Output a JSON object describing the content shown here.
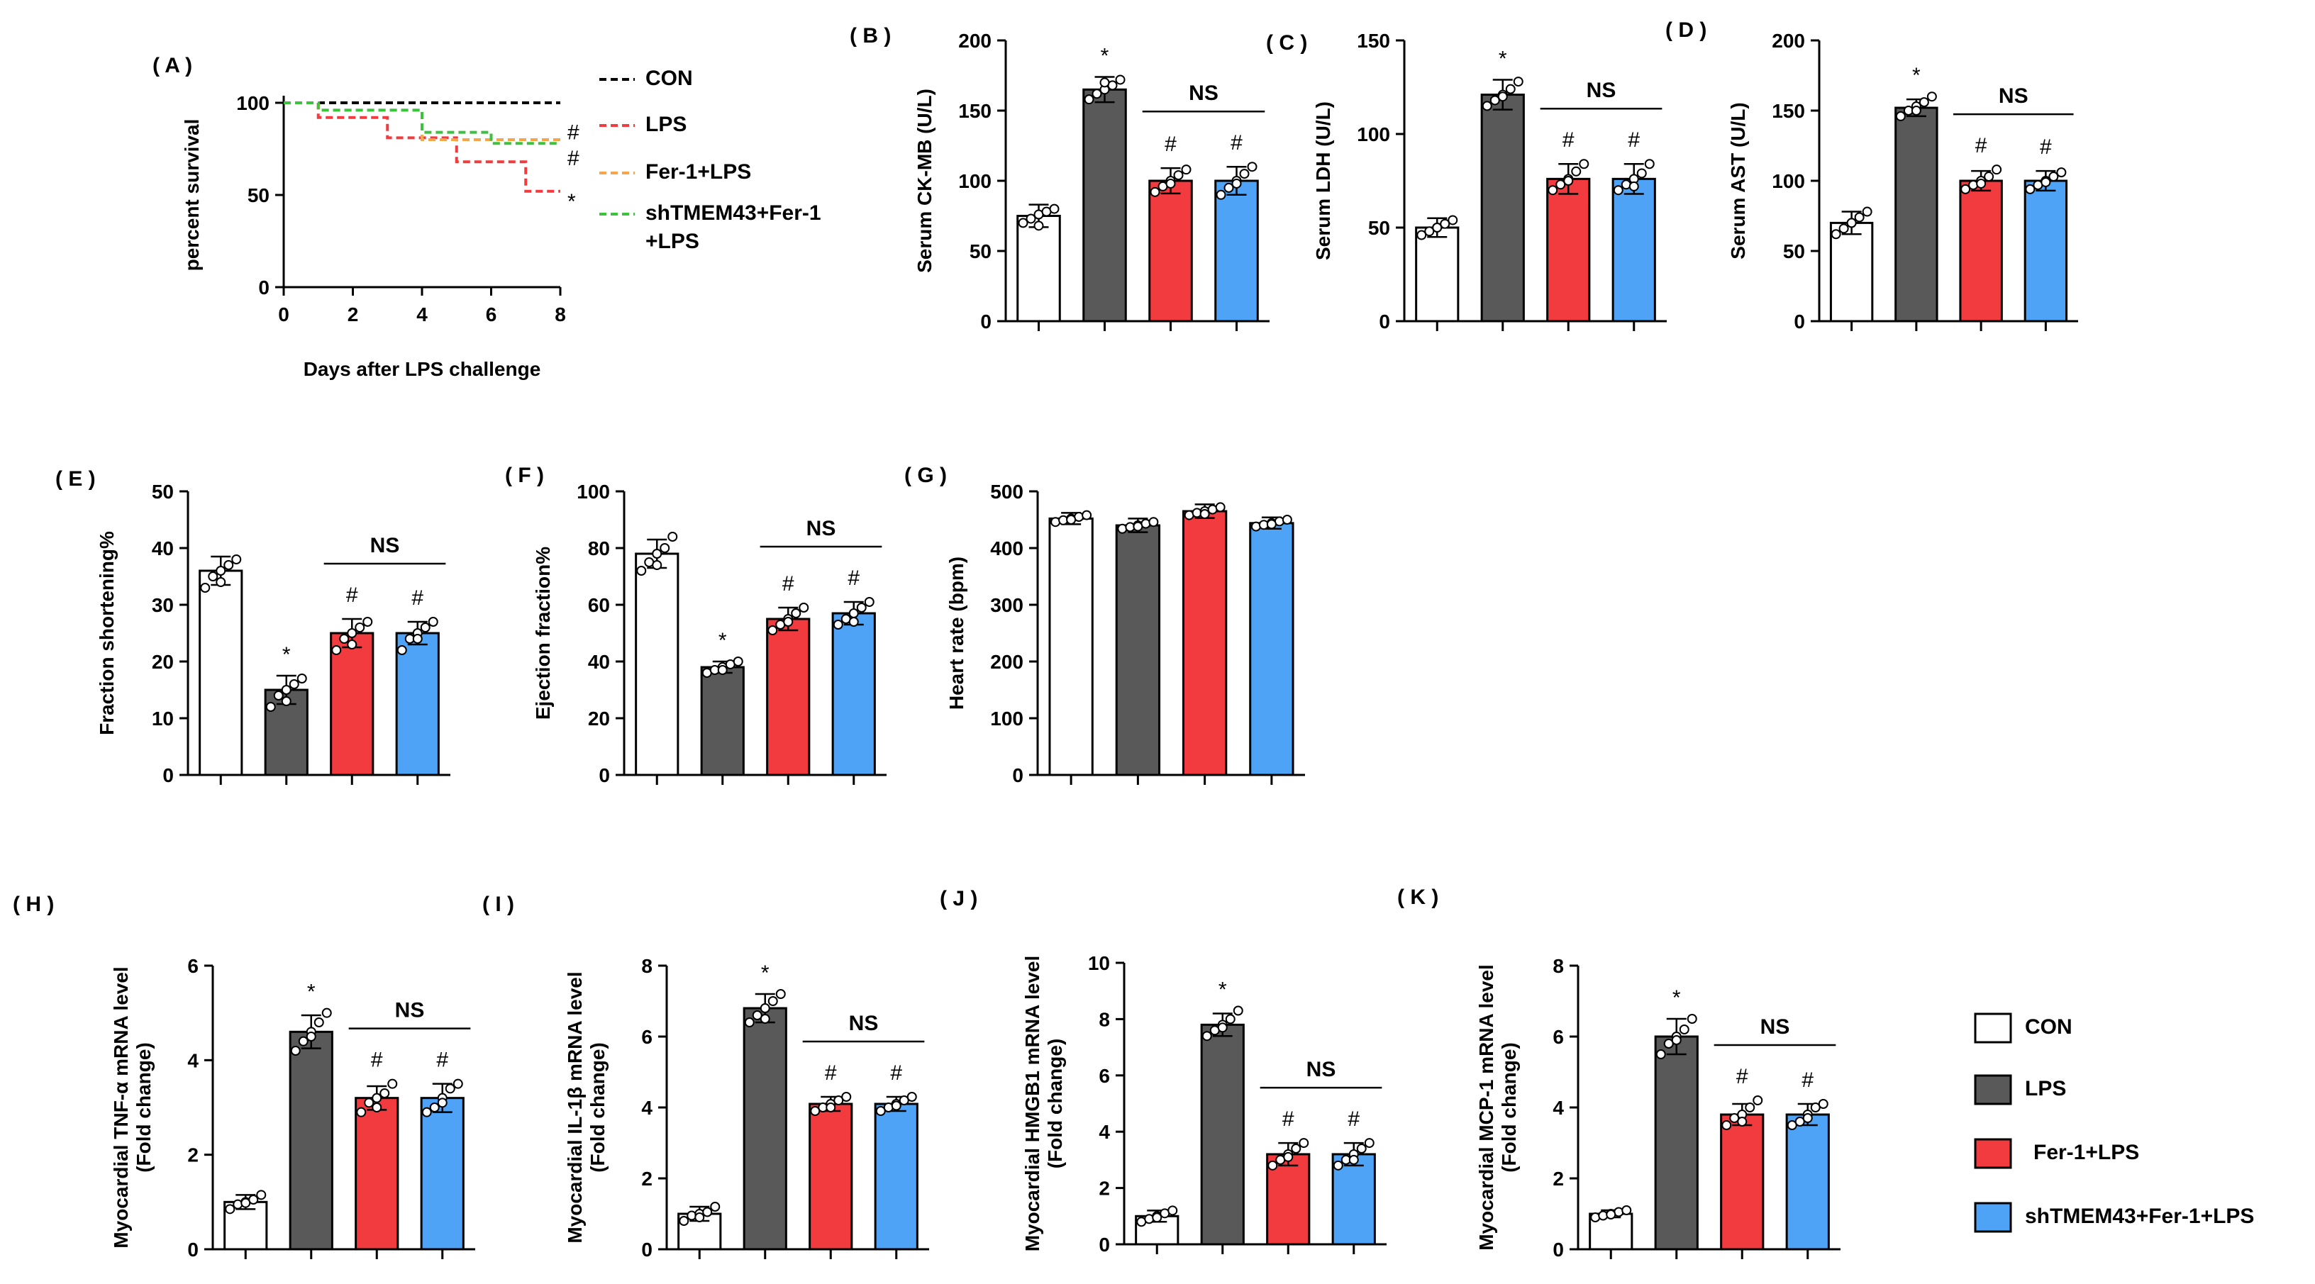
{
  "figure": {
    "colors": {
      "con": "#ffffff",
      "lps": "#595959",
      "fer1": "#f23b3f",
      "sh": "#4fa3f7",
      "edge": "#000000"
    },
    "groups": [
      "CON",
      "LPS",
      "Fer-1+LPS",
      "shTMEM43+Fer-1+LPS"
    ]
  },
  "legend": {
    "items": [
      {
        "label": "CON",
        "color": "#ffffff"
      },
      {
        "label": "LPS",
        "color": "#595959"
      },
      {
        "label": "Fer-1+LPS",
        "color": "#f23b3f"
      },
      {
        "label": "shTMEM43+Fer-1+LPS",
        "color": "#4fa3f7"
      }
    ]
  },
  "chart_data": [
    {
      "id": "A",
      "panel_label": "( A )",
      "type": "line",
      "title": "",
      "xlabel": "Days after LPS challenge",
      "ylabel": "percent survival",
      "xlim": [
        0,
        8
      ],
      "ylim": [
        0,
        100
      ],
      "xticks": [
        0,
        2,
        4,
        6,
        8
      ],
      "yticks": [
        0,
        50,
        100
      ],
      "series": [
        {
          "name": "CON",
          "color": "#000000",
          "x": [
            0,
            8
          ],
          "y": [
            100,
            100
          ]
        },
        {
          "name": "LPS",
          "color": "#f23b3f",
          "x": [
            0,
            1,
            1,
            3,
            3,
            5,
            5,
            7,
            7,
            8
          ],
          "y": [
            100,
            100,
            92,
            92,
            81,
            81,
            68,
            68,
            52,
            52
          ]
        },
        {
          "name": "Fer-1+LPS",
          "color": "#f5a54a",
          "x": [
            0,
            1,
            1,
            4,
            4,
            8
          ],
          "y": [
            100,
            100,
            96,
            96,
            80,
            80
          ]
        },
        {
          "name": "shTMEM43+Fer-1\n+LPS",
          "color": "#3cc23c",
          "x": [
            0,
            1,
            1,
            4,
            4,
            6,
            6,
            8
          ],
          "y": [
            100,
            100,
            96,
            96,
            84,
            84,
            78,
            78
          ]
        }
      ],
      "annotations": [
        "#",
        "#",
        "*"
      ]
    },
    {
      "id": "B",
      "panel_label": "( B )",
      "type": "bar",
      "ylabel": "Serum CK-MB (U/L)",
      "ylim": [
        0,
        200
      ],
      "yticks": [
        0,
        50,
        100,
        150,
        200
      ],
      "categories": [
        "CON",
        "LPS",
        "Fer-1+LPS",
        "shTMEM43+Fer-1+LPS"
      ],
      "values": [
        75,
        165,
        100,
        100
      ],
      "errors": [
        8,
        9,
        9,
        10
      ],
      "points": [
        [
          70,
          73,
          76,
          78,
          80,
          68
        ],
        [
          158,
          162,
          165,
          168,
          172,
          170
        ],
        [
          92,
          96,
          100,
          104,
          108,
          98
        ],
        [
          90,
          95,
          100,
          105,
          110,
          98
        ]
      ],
      "marks": [
        "",
        "*",
        "#",
        "#"
      ],
      "ns": "NS"
    },
    {
      "id": "C",
      "panel_label": "( C )",
      "type": "bar",
      "ylabel": "Serum LDH (U/L)",
      "ylim": [
        0,
        150
      ],
      "yticks": [
        0,
        50,
        100,
        150
      ],
      "categories": [
        "CON",
        "LPS",
        "Fer-1+LPS",
        "shTMEM43+Fer-1+LPS"
      ],
      "values": [
        50,
        121,
        76,
        76
      ],
      "errors": [
        5,
        8,
        8,
        8
      ],
      "points": [
        [
          46,
          48,
          50,
          52,
          54,
          50
        ],
        [
          115,
          118,
          121,
          124,
          128,
          120
        ],
        [
          70,
          73,
          76,
          80,
          84,
          75
        ],
        [
          70,
          73,
          76,
          79,
          84,
          72
        ]
      ],
      "marks": [
        "",
        "*",
        "#",
        "#"
      ],
      "ns": "NS"
    },
    {
      "id": "D",
      "panel_label": "( D )",
      "type": "bar",
      "ylabel": "Serum AST (U/L)",
      "ylim": [
        0,
        200
      ],
      "yticks": [
        0,
        50,
        100,
        150,
        200
      ],
      "categories": [
        "CON",
        "LPS",
        "Fer-1+LPS",
        "shTMEM43+Fer-1+LPS"
      ],
      "values": [
        70,
        152,
        100,
        100
      ],
      "errors": [
        8,
        6,
        7,
        7
      ],
      "points": [
        [
          62,
          66,
          70,
          74,
          78,
          70
        ],
        [
          146,
          150,
          153,
          156,
          160,
          150
        ],
        [
          94,
          97,
          100,
          103,
          108,
          98
        ],
        [
          94,
          97,
          100,
          103,
          106,
          99
        ]
      ],
      "marks": [
        "",
        "*",
        "#",
        "#"
      ],
      "ns": "NS"
    },
    {
      "id": "E",
      "panel_label": "( E )",
      "type": "bar",
      "ylabel": "Fraction shortening%",
      "ylim": [
        0,
        50
      ],
      "yticks": [
        0,
        10,
        20,
        30,
        40,
        50
      ],
      "categories": [
        "CON",
        "LPS",
        "Fer-1+LPS",
        "shTMEM43+Fer-1+LPS"
      ],
      "values": [
        36,
        15,
        25,
        25
      ],
      "errors": [
        2.5,
        2.5,
        2.5,
        2
      ],
      "points": [
        [
          33,
          35,
          36,
          37,
          38,
          34
        ],
        [
          12,
          14,
          15,
          16,
          17,
          13
        ],
        [
          22,
          24,
          25,
          26,
          27,
          23
        ],
        [
          22,
          24,
          25,
          26,
          27,
          24
        ]
      ],
      "marks": [
        "",
        "*",
        "#",
        "#"
      ],
      "ns": "NS"
    },
    {
      "id": "F",
      "panel_label": "( F )",
      "type": "bar",
      "ylabel": "Ejection fraction%",
      "ylim": [
        0,
        100
      ],
      "yticks": [
        0,
        20,
        40,
        60,
        80,
        100
      ],
      "categories": [
        "CON",
        "LPS",
        "Fer-1+LPS",
        "shTMEM43+Fer-1+LPS"
      ],
      "values": [
        78,
        38,
        55,
        57
      ],
      "errors": [
        5,
        2,
        4,
        4
      ],
      "points": [
        [
          72,
          75,
          78,
          80,
          84,
          74
        ],
        [
          36,
          37,
          38,
          39,
          40,
          37
        ],
        [
          51,
          53,
          55,
          57,
          59,
          54
        ],
        [
          53,
          55,
          57,
          59,
          61,
          54
        ]
      ],
      "marks": [
        "",
        "*",
        "#",
        "#"
      ],
      "ns": "NS"
    },
    {
      "id": "G",
      "panel_label": "( G )",
      "type": "bar",
      "ylabel": "Heart rate (bpm)",
      "ylim": [
        0,
        500
      ],
      "yticks": [
        0,
        100,
        200,
        300,
        400,
        500
      ],
      "categories": [
        "CON",
        "LPS",
        "Fer-1+LPS",
        "shTMEM43+Fer-1+LPS"
      ],
      "values": [
        452,
        440,
        465,
        444
      ],
      "errors": [
        10,
        12,
        12,
        10
      ],
      "points": [
        [
          446,
          449,
          452,
          455,
          458,
          450
        ],
        [
          434,
          437,
          440,
          443,
          446,
          438
        ],
        [
          458,
          462,
          465,
          468,
          472,
          460
        ],
        [
          438,
          441,
          444,
          447,
          450,
          442
        ]
      ],
      "marks": [
        "",
        "",
        "",
        ""
      ],
      "ns": ""
    },
    {
      "id": "H",
      "panel_label": "( H )",
      "type": "bar",
      "ylabel": "Myocardial TNF-α mRNA level\n(Fold change)",
      "ylim": [
        0,
        6
      ],
      "yticks": [
        0,
        2,
        4,
        6
      ],
      "categories": [
        "CON",
        "LPS",
        "Fer-1+LPS",
        "shTMEM43+Fer-1+LPS"
      ],
      "values": [
        1,
        4.6,
        3.2,
        3.2
      ],
      "errors": [
        0.15,
        0.35,
        0.25,
        0.3
      ],
      "points": [
        [
          0.85,
          0.95,
          1.0,
          1.05,
          1.15,
          0.98
        ],
        [
          4.2,
          4.4,
          4.6,
          4.8,
          5.0,
          4.5
        ],
        [
          2.9,
          3.1,
          3.2,
          3.3,
          3.5,
          3.0
        ],
        [
          2.9,
          3.0,
          3.2,
          3.4,
          3.5,
          3.1
        ]
      ],
      "marks": [
        "",
        "*",
        "#",
        "#"
      ],
      "ns": "NS"
    },
    {
      "id": "I",
      "panel_label": "( I )",
      "type": "bar",
      "ylabel": "Myocardial IL-1β mRNA level\n(Fold change)",
      "ylim": [
        0,
        8
      ],
      "yticks": [
        0,
        2,
        4,
        6,
        8
      ],
      "categories": [
        "CON",
        "LPS",
        "Fer-1+LPS",
        "shTMEM43+Fer-1+LPS"
      ],
      "values": [
        1,
        6.8,
        4.1,
        4.1
      ],
      "errors": [
        0.2,
        0.4,
        0.2,
        0.2
      ],
      "points": [
        [
          0.8,
          0.95,
          1.0,
          1.05,
          1.2,
          0.9
        ],
        [
          6.4,
          6.6,
          6.8,
          7.0,
          7.2,
          6.5
        ],
        [
          3.9,
          4.0,
          4.1,
          4.2,
          4.3,
          4.0
        ],
        [
          3.9,
          4.0,
          4.1,
          4.2,
          4.3,
          4.05
        ]
      ],
      "marks": [
        "",
        "*",
        "#",
        "#"
      ],
      "ns": "NS"
    },
    {
      "id": "J",
      "panel_label": "( J )",
      "type": "bar",
      "ylabel": "Myocardial HMGB1 mRNA level\n(Fold change)",
      "ylim": [
        0,
        10
      ],
      "yticks": [
        0,
        2,
        4,
        6,
        8,
        10
      ],
      "categories": [
        "CON",
        "LPS",
        "Fer-1+LPS",
        "shTMEM43+Fer-1+LPS"
      ],
      "values": [
        1,
        7.8,
        3.2,
        3.2
      ],
      "errors": [
        0.2,
        0.4,
        0.4,
        0.4
      ],
      "points": [
        [
          0.8,
          0.9,
          1.0,
          1.1,
          1.2,
          0.95
        ],
        [
          7.4,
          7.6,
          7.8,
          8.0,
          8.3,
          7.7
        ],
        [
          2.8,
          3.0,
          3.2,
          3.4,
          3.6,
          3.1
        ],
        [
          2.8,
          3.0,
          3.2,
          3.4,
          3.6,
          3.0
        ]
      ],
      "marks": [
        "",
        "*",
        "#",
        "#"
      ],
      "ns": "NS"
    },
    {
      "id": "K",
      "panel_label": "( K )",
      "type": "bar",
      "ylabel": "Myocardial MCP-1 mRNA level\n(Fold change)",
      "ylim": [
        0,
        8
      ],
      "yticks": [
        0,
        2,
        4,
        6,
        8
      ],
      "categories": [
        "CON",
        "LPS",
        "Fer-1+LPS",
        "shTMEM43+Fer-1+LPS"
      ],
      "values": [
        1,
        6,
        3.8,
        3.8
      ],
      "errors": [
        0.1,
        0.5,
        0.3,
        0.3
      ],
      "points": [
        [
          0.9,
          0.95,
          1.0,
          1.05,
          1.1,
          0.98
        ],
        [
          5.5,
          5.8,
          6.0,
          6.2,
          6.5,
          5.9
        ],
        [
          3.5,
          3.7,
          3.8,
          4.0,
          4.2,
          3.6
        ],
        [
          3.5,
          3.6,
          3.8,
          4.0,
          4.1,
          3.7
        ]
      ],
      "marks": [
        "",
        "*",
        "#",
        "#"
      ],
      "ns": "NS"
    }
  ]
}
